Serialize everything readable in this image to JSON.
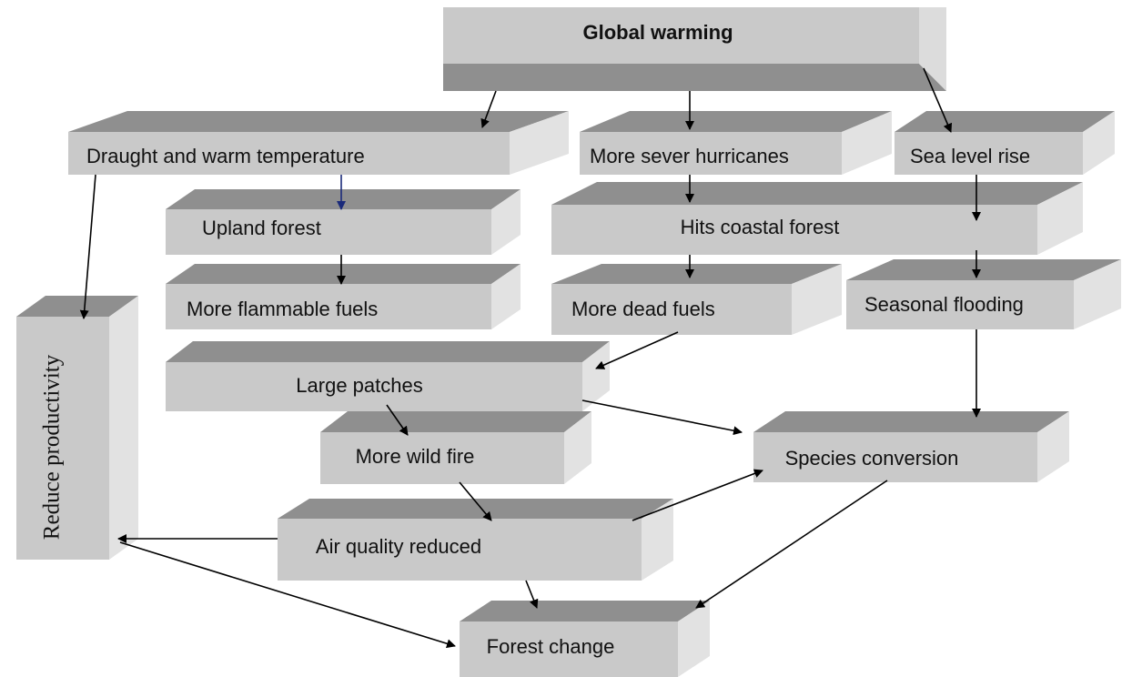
{
  "nodes": [
    {
      "label": "Global warming"
    },
    {
      "label": "Draught and warm temperature"
    },
    {
      "label": "More sever hurricanes"
    },
    {
      "label": "Sea level rise"
    },
    {
      "label": "Upland forest"
    },
    {
      "label": "Hits coastal forest"
    },
    {
      "label": "More flammable fuels"
    },
    {
      "label": "More dead fuels"
    },
    {
      "label": "Seasonal flooding"
    },
    {
      "label": "Reduce productivity"
    },
    {
      "label": "Large patches"
    },
    {
      "label": "More wild fire"
    },
    {
      "label": "Species conversion"
    },
    {
      "label": "Air quality reduced"
    },
    {
      "label": "Forest change"
    }
  ]
}
